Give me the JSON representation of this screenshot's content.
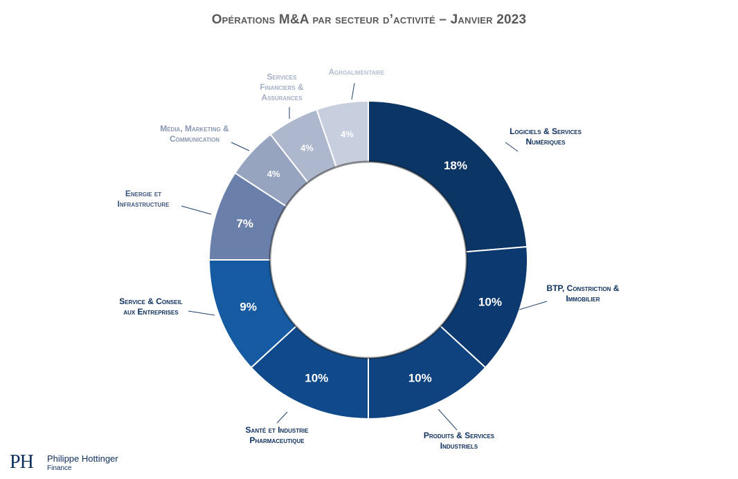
{
  "chart_data": {
    "type": "pie",
    "title": "Opérations M&A par secteur d’activité – Janvier 2023",
    "slices": [
      {
        "name": "Logiciels & Services Numériques",
        "label_lines": [
          "Logiciels & Services",
          "Numériques"
        ],
        "value": 18,
        "value_label": "18%",
        "color": "#0b3564"
      },
      {
        "name": "BTP, Constriction & Immobilier",
        "label_lines": [
          "BTP, Constriction &",
          "Immobilier"
        ],
        "value": 10,
        "value_label": "10%",
        "color": "#0c3a70"
      },
      {
        "name": "Produits & Services Industriels",
        "label_lines": [
          "Produits & Services",
          "Industriels"
        ],
        "value": 10,
        "value_label": "10%",
        "color": "#0e437f"
      },
      {
        "name": "Santé et Industrie Pharmaceutique",
        "label_lines": [
          "Santé et Industrie",
          "Pharmaceutique"
        ],
        "value": 10,
        "value_label": "10%",
        "color": "#104a8a"
      },
      {
        "name": "Service & Conseil aux Entreprises",
        "label_lines": [
          "Service & Conseil",
          "aux Entreprises"
        ],
        "value": 9,
        "value_label": "9%",
        "color": "#165aa1"
      },
      {
        "name": "Energie et Infrastructure",
        "label_lines": [
          "Energie et",
          "Infrastructure"
        ],
        "value": 7,
        "value_label": "7%",
        "color": "#6a80aa"
      },
      {
        "name": "Média, Marketing & Communication",
        "label_lines": [
          "Média, Marketing &",
          "Communication"
        ],
        "value": 4,
        "value_label": "4%",
        "color": "#97a4c0"
      },
      {
        "name": "Services Financiers & Assurances",
        "label_lines": [
          "Services",
          "Financiers &",
          "Assurances"
        ],
        "value": 4,
        "value_label": "4%",
        "color": "#aeb8cd"
      },
      {
        "name": "Agroalimentaire",
        "label_lines": [
          "Agroalimentaire"
        ],
        "value": 4,
        "value_label": "4%",
        "color": "#c7cedd"
      }
    ],
    "legend": "none"
  },
  "logo": {
    "mark": "PH",
    "name": "Philippe Hottinger",
    "sub": "Finance"
  }
}
